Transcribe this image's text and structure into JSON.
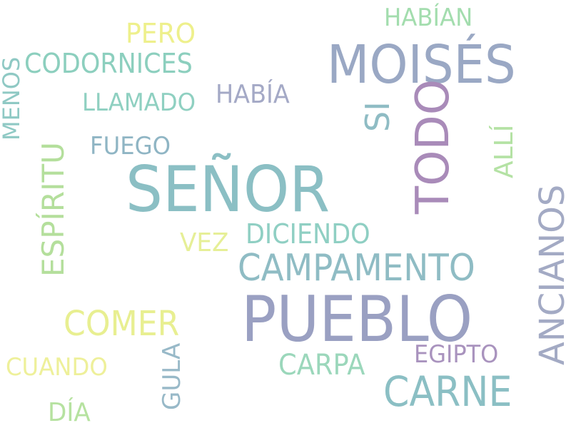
{
  "words": [
    {
      "text": "SEÑOR",
      "color": "#8bbfc4"
    },
    {
      "text": "PUEBLO",
      "color": "#9aa0c2"
    },
    {
      "text": "MOISÉS",
      "color": "#9aa8c4"
    },
    {
      "text": "TODO",
      "color": "#a98bb9"
    },
    {
      "text": "CAMPAMENTO",
      "color": "#8fbcc4"
    },
    {
      "text": "CARNE",
      "color": "#8bbfc4"
    },
    {
      "text": "ANCIANOS",
      "color": "#a3aac4"
    },
    {
      "text": "COMER",
      "color": "#e8ef91"
    },
    {
      "text": "ESPÍRITU",
      "color": "#b4df9c"
    },
    {
      "text": "CODORNICES",
      "color": "#8ccfbe"
    },
    {
      "text": "DICIENDO",
      "color": "#8fcfc3"
    },
    {
      "text": "CARPA",
      "color": "#9bd7bb"
    },
    {
      "text": "EGIPTO",
      "color": "#a993be"
    },
    {
      "text": "LLAMADO",
      "color": "#8fd0c1"
    },
    {
      "text": "HABÍA",
      "color": "#a4a9c6"
    },
    {
      "text": "HABÍAN",
      "color": "#a3ddae"
    },
    {
      "text": "PERO",
      "color": "#eef08c"
    },
    {
      "text": "SI",
      "color": "#8fbcc4"
    },
    {
      "text": "ALLÍ",
      "color": "#b4e2a4"
    },
    {
      "text": "FUEGO",
      "color": "#8fb5c4"
    },
    {
      "text": "MENOS",
      "color": "#8fc9c4"
    },
    {
      "text": "VEZ",
      "color": "#e6ef97"
    },
    {
      "text": "CUANDO",
      "color": "#eef09a"
    },
    {
      "text": "DÍA",
      "color": "#b6e2a0"
    },
    {
      "text": "GULA",
      "color": "#98b9c8"
    }
  ]
}
